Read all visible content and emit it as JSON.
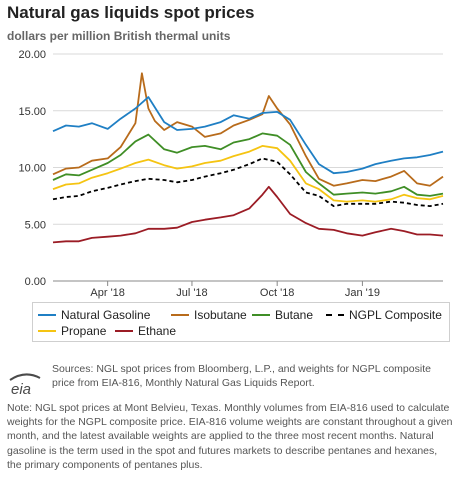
{
  "header": {
    "title": "Natural gas liquids spot prices",
    "subtitle": "dollars per million British thermal units"
  },
  "chart_data": {
    "type": "line",
    "title": "Natural gas liquids spot prices",
    "subtitle": "dollars per million British thermal units",
    "ylim": [
      0,
      20
    ],
    "y_ticks": [
      "0.00",
      "5.00",
      "10.00",
      "15.00",
      "20.00"
    ],
    "x_ticks": [
      {
        "label": "Apr '18",
        "date": "2018-04-01"
      },
      {
        "label": "Jul '18",
        "date": "2018-07-01"
      },
      {
        "label": "Oct '18",
        "date": "2018-10-01"
      },
      {
        "label": "Jan '19",
        "date": "2019-01-01"
      }
    ],
    "x_range": [
      "2018-02-01",
      "2019-03-29"
    ],
    "grid": "horizontal",
    "legend_position": "bottom",
    "series": [
      {
        "name": "Natural Gasoline",
        "color": "#1f7fc4",
        "dash": "solid",
        "x": [
          "2018-02-01",
          "2018-02-15",
          "2018-03-01",
          "2018-03-15",
          "2018-04-01",
          "2018-04-15",
          "2018-05-01",
          "2018-05-15",
          "2018-06-01",
          "2018-06-15",
          "2018-07-01",
          "2018-07-15",
          "2018-08-01",
          "2018-08-15",
          "2018-09-01",
          "2018-09-15",
          "2018-10-01",
          "2018-10-15",
          "2018-11-01",
          "2018-11-15",
          "2018-12-01",
          "2018-12-15",
          "2019-01-01",
          "2019-01-15",
          "2019-02-01",
          "2019-02-15",
          "2019-03-01",
          "2019-03-15",
          "2019-03-29"
        ],
        "values": [
          13.2,
          13.7,
          13.6,
          13.9,
          13.4,
          14.3,
          15.2,
          16.2,
          14.0,
          13.3,
          13.4,
          13.6,
          14.0,
          14.6,
          14.3,
          14.8,
          14.9,
          14.2,
          12.0,
          10.3,
          9.5,
          9.6,
          9.9,
          10.3,
          10.6,
          10.8,
          10.9,
          11.1,
          11.4
        ]
      },
      {
        "name": "Isobutane",
        "color": "#b86b1b",
        "dash": "solid",
        "x": [
          "2018-02-01",
          "2018-02-15",
          "2018-03-01",
          "2018-03-15",
          "2018-04-01",
          "2018-04-15",
          "2018-05-01",
          "2018-05-08",
          "2018-05-15",
          "2018-05-22",
          "2018-06-01",
          "2018-06-15",
          "2018-07-01",
          "2018-07-15",
          "2018-08-01",
          "2018-08-15",
          "2018-09-01",
          "2018-09-15",
          "2018-09-22",
          "2018-10-01",
          "2018-10-15",
          "2018-11-01",
          "2018-11-15",
          "2018-12-01",
          "2018-12-15",
          "2019-01-01",
          "2019-01-15",
          "2019-02-01",
          "2019-02-15",
          "2019-03-01",
          "2019-03-15",
          "2019-03-29"
        ],
        "values": [
          9.4,
          9.9,
          10.0,
          10.6,
          10.8,
          11.8,
          13.9,
          18.3,
          15.2,
          14.1,
          13.3,
          14.0,
          13.6,
          12.7,
          13.0,
          13.7,
          14.2,
          14.7,
          16.3,
          15.2,
          13.8,
          11.0,
          9.0,
          8.4,
          8.6,
          8.9,
          8.8,
          9.2,
          9.7,
          8.6,
          8.4,
          9.2
        ]
      },
      {
        "name": "Butane",
        "color": "#3f8e26",
        "dash": "solid",
        "x": [
          "2018-02-01",
          "2018-02-15",
          "2018-03-01",
          "2018-03-15",
          "2018-04-01",
          "2018-04-15",
          "2018-05-01",
          "2018-05-15",
          "2018-06-01",
          "2018-06-15",
          "2018-07-01",
          "2018-07-15",
          "2018-08-01",
          "2018-08-15",
          "2018-09-01",
          "2018-09-15",
          "2018-10-01",
          "2018-10-15",
          "2018-11-01",
          "2018-11-15",
          "2018-12-01",
          "2018-12-15",
          "2019-01-01",
          "2019-01-15",
          "2019-02-01",
          "2019-02-15",
          "2019-03-01",
          "2019-03-15",
          "2019-03-29"
        ],
        "values": [
          8.9,
          9.4,
          9.3,
          9.8,
          10.4,
          11.1,
          12.3,
          12.9,
          11.6,
          11.3,
          11.8,
          11.9,
          11.6,
          12.2,
          12.5,
          13.0,
          12.8,
          12.0,
          9.6,
          8.6,
          7.6,
          7.7,
          7.8,
          7.7,
          7.9,
          8.3,
          7.6,
          7.5,
          7.7
        ]
      },
      {
        "name": "NGPL Composite",
        "color": "#000000",
        "dash": "dashed",
        "x": [
          "2018-02-01",
          "2018-02-15",
          "2018-03-01",
          "2018-03-15",
          "2018-04-01",
          "2018-04-15",
          "2018-05-01",
          "2018-05-15",
          "2018-06-01",
          "2018-06-15",
          "2018-07-01",
          "2018-07-15",
          "2018-08-01",
          "2018-08-15",
          "2018-09-01",
          "2018-09-15",
          "2018-10-01",
          "2018-10-15",
          "2018-11-01",
          "2018-11-15",
          "2018-12-01",
          "2018-12-15",
          "2019-01-01",
          "2019-01-15",
          "2019-02-01",
          "2019-02-15",
          "2019-03-01",
          "2019-03-15",
          "2019-03-29"
        ],
        "values": [
          7.2,
          7.4,
          7.5,
          7.9,
          8.2,
          8.5,
          8.8,
          9.0,
          8.9,
          8.7,
          8.9,
          9.2,
          9.5,
          9.8,
          10.3,
          10.8,
          10.5,
          9.4,
          7.8,
          7.5,
          6.6,
          6.8,
          6.8,
          6.8,
          7.0,
          6.9,
          6.7,
          6.6,
          6.8
        ]
      },
      {
        "name": "Propane",
        "color": "#f5c412",
        "dash": "solid",
        "x": [
          "2018-02-01",
          "2018-02-15",
          "2018-03-01",
          "2018-03-15",
          "2018-04-01",
          "2018-04-15",
          "2018-05-01",
          "2018-05-15",
          "2018-06-01",
          "2018-06-15",
          "2018-07-01",
          "2018-07-15",
          "2018-08-01",
          "2018-08-15",
          "2018-09-01",
          "2018-09-15",
          "2018-10-01",
          "2018-10-15",
          "2018-11-01",
          "2018-11-15",
          "2018-12-01",
          "2018-12-15",
          "2019-01-01",
          "2019-01-15",
          "2019-02-01",
          "2019-02-15",
          "2019-03-01",
          "2019-03-15",
          "2019-03-29"
        ],
        "values": [
          8.1,
          8.5,
          8.6,
          9.1,
          9.5,
          9.9,
          10.4,
          10.7,
          10.2,
          9.9,
          10.1,
          10.4,
          10.6,
          11.0,
          11.4,
          11.9,
          11.7,
          10.6,
          8.6,
          8.1,
          7.1,
          7.0,
          7.1,
          7.0,
          7.2,
          7.6,
          7.3,
          7.2,
          7.5
        ]
      },
      {
        "name": "Ethane",
        "color": "#9b1c25",
        "dash": "solid",
        "x": [
          "2018-02-01",
          "2018-02-15",
          "2018-03-01",
          "2018-03-15",
          "2018-04-01",
          "2018-04-15",
          "2018-05-01",
          "2018-05-15",
          "2018-06-01",
          "2018-06-15",
          "2018-07-01",
          "2018-07-15",
          "2018-08-01",
          "2018-08-15",
          "2018-09-01",
          "2018-09-15",
          "2018-09-22",
          "2018-10-01",
          "2018-10-15",
          "2018-11-01",
          "2018-11-15",
          "2018-12-01",
          "2018-12-15",
          "2019-01-01",
          "2019-01-15",
          "2019-02-01",
          "2019-02-15",
          "2019-03-01",
          "2019-03-15",
          "2019-03-29"
        ],
        "values": [
          3.4,
          3.5,
          3.5,
          3.8,
          3.9,
          4.0,
          4.2,
          4.6,
          4.6,
          4.7,
          5.2,
          5.4,
          5.6,
          5.8,
          6.4,
          7.6,
          8.3,
          7.4,
          5.9,
          5.1,
          4.6,
          4.5,
          4.2,
          4.0,
          4.3,
          4.6,
          4.4,
          4.1,
          4.1,
          4.0
        ]
      }
    ]
  },
  "legend": {
    "items": [
      {
        "label": "Natural Gasoline",
        "color": "#1f7fc4",
        "dashed": false
      },
      {
        "label": "Isobutane",
        "color": "#b86b1b",
        "dashed": false
      },
      {
        "label": "Butane",
        "color": "#3f8e26",
        "dashed": false
      },
      {
        "label": "NGPL Composite",
        "color": "#000000",
        "dashed": true
      },
      {
        "label": "Propane",
        "color": "#f5c412",
        "dashed": false
      },
      {
        "label": "Ethane",
        "color": "#9b1c25",
        "dashed": false
      }
    ]
  },
  "footer": {
    "logo_text": "eia",
    "sources": "Sources: NGL spot prices from Bloomberg, L.P., and weights for NGPL composite price from EIA-816, Monthly Natural Gas Liquids Report.",
    "note": "Note: NGL spot prices at Mont Belvieu, Texas. Monthly volumes from EIA-816 used to calculate weights for the NGPL composite price. EIA-816 volume weights are constant throughout a given month, and the latest available weights are applied to the three most recent months. Natural gasoline is the term used in the spot and futures markets to describe pentanes and hexanes, the primary components of pentanes plus."
  }
}
